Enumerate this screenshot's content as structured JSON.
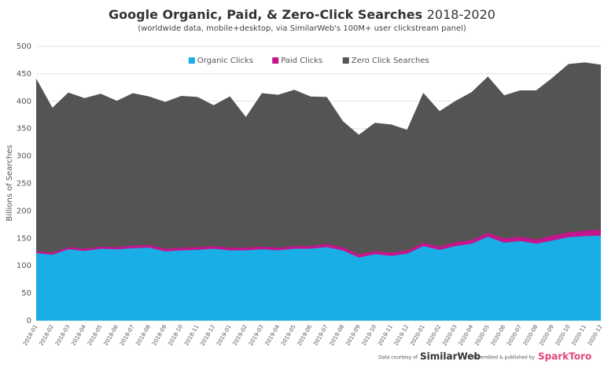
{
  "chart_data": {
    "type": "stacked-area",
    "title": "Google Organic, Paid, & Zero-Click Searches",
    "title_years": "2018-2020",
    "subtitle": "(worldwide data, mobile+desktop, via SimilarWeb's 100M+ user clickstream panel)",
    "y_label": "Billions of Searches",
    "categories": [
      "2018-01",
      "2018-02",
      "2018-03",
      "2018-04",
      "2018-05",
      "2018-06",
      "2018-07",
      "2018-08",
      "2018-09",
      "2018-10",
      "2018-11",
      "2018-12",
      "2019-01",
      "2019-02",
      "2019-03",
      "2019-04",
      "2019-05",
      "2019-06",
      "2019-07",
      "2019-08",
      "2019-09",
      "2019-10",
      "2019-11",
      "2019-12",
      "2020-01",
      "2020-02",
      "2020-03",
      "2020-04",
      "2020-05",
      "2020-06",
      "2020-07",
      "2020-08",
      "2020-09",
      "2020-10",
      "2020-11",
      "2020-12"
    ],
    "series": [
      {
        "name": "Organic Clicks",
        "color": "#19aee6",
        "values": [
          123,
          120,
          130,
          127,
          131,
          130,
          132,
          133,
          126,
          128,
          129,
          131,
          128,
          128,
          130,
          128,
          131,
          131,
          134,
          128,
          115,
          121,
          118,
          122,
          136,
          129,
          136,
          140,
          153,
          142,
          145,
          140,
          146,
          152,
          154,
          155
        ]
      },
      {
        "name": "Paid Clicks",
        "color": "#c4168c",
        "values": [
          4,
          4,
          4,
          4,
          4,
          4,
          5,
          5,
          5,
          5,
          5,
          5,
          5,
          5,
          5,
          5,
          5,
          5,
          6,
          6,
          6,
          6,
          6,
          6,
          6,
          6,
          7,
          7,
          7,
          8,
          8,
          8,
          9,
          9,
          10,
          11
        ]
      },
      {
        "name": "Zero Click Searches",
        "color": "#545454",
        "values": [
          313,
          263,
          281,
          274,
          278,
          266,
          277,
          270,
          267,
          276,
          273,
          256,
          275,
          237,
          279,
          278,
          284,
          272,
          267,
          229,
          217,
          233,
          233,
          219,
          272,
          246,
          257,
          269,
          284,
          260,
          266,
          271,
          287,
          306,
          306,
          300
        ]
      }
    ],
    "ylim": [
      0,
      500
    ],
    "yticks": [
      0,
      50,
      100,
      150,
      200,
      250,
      300,
      350,
      400,
      450,
      500
    ],
    "grid": true,
    "legend": "top"
  },
  "footer": {
    "data_credit": "Data courtesy of",
    "data_source": "SimilarWeb",
    "publisher_credit": "Assembled & published by",
    "publisher": "SparkToro"
  }
}
